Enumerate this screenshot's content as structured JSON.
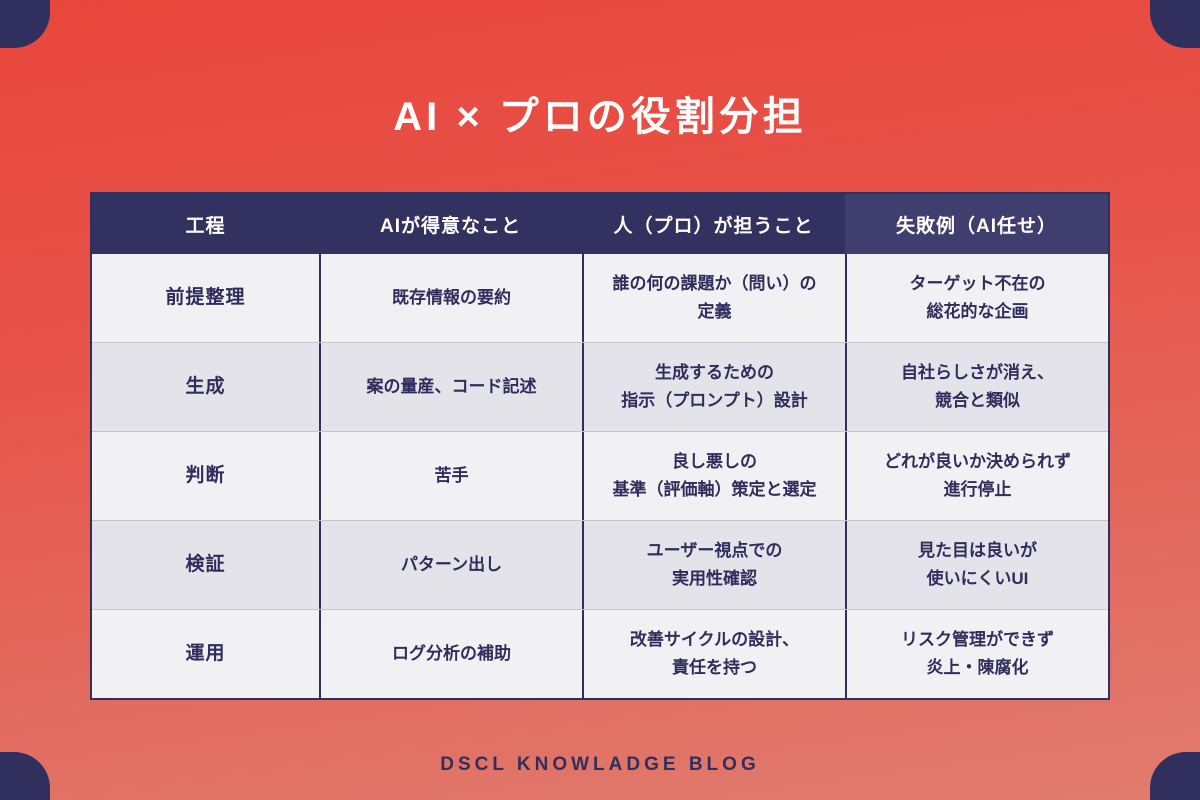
{
  "title": "AI × プロの役割分担",
  "footer": "DSCL KNOWLADGE BLOG",
  "colors": {
    "background_top": "#e8463b",
    "background_bottom": "#e07c6f",
    "navy": "#312f5e",
    "header_bg": "#333160",
    "header_highlight_bg": "#403e6f",
    "row_light": "#f1f0f3",
    "row_dark": "#e4e3e9",
    "cell_text": "#2f2d5c",
    "title_text": "#ffffff"
  },
  "table": {
    "header": [
      "工程",
      "AIが得意なこと",
      "人（プロ）が担うこと",
      "失敗例（AI任せ）"
    ],
    "rows": [
      {
        "cells": [
          "前提整理",
          "既存情報の要約",
          "誰の何の課題か（問い）の\n定義",
          "ターゲット不在の\n総花的な企画"
        ]
      },
      {
        "cells": [
          "生成",
          "案の量産、コード記述",
          "生成するための\n指示（プロンプト）設計",
          "自社らしさが消え、\n競合と類似"
        ]
      },
      {
        "cells": [
          "判断",
          "苦手",
          "良し悪しの\n基準（評価軸）策定と選定",
          "どれが良いか決められず\n進行停止"
        ]
      },
      {
        "cells": [
          "検証",
          "パターン出し",
          "ユーザー視点での\n実用性確認",
          "見た目は良いが\n使いにくいUI"
        ]
      },
      {
        "cells": [
          "運用",
          "ログ分析の補助",
          "改善サイクルの設計、\n責任を持つ",
          "リスク管理ができず\n炎上・陳腐化"
        ]
      }
    ]
  },
  "chart_data": {
    "type": "table",
    "title": "AI × プロの役割分担",
    "columns": [
      "工程",
      "AIが得意なこと",
      "人（プロ）が担うこと",
      "失敗例（AI任せ）"
    ],
    "rows": [
      [
        "前提整理",
        "既存情報の要約",
        "誰の何の課題か（問い）の定義",
        "ターゲット不在の総花的な企画"
      ],
      [
        "生成",
        "案の量産、コード記述",
        "生成するための指示（プロンプト）設計",
        "自社らしさが消え、競合と類似"
      ],
      [
        "判断",
        "苦手",
        "良し悪しの基準（評価軸）策定と選定",
        "どれが良いか決められず進行停止"
      ],
      [
        "検証",
        "パターン出し",
        "ユーザー視点での実用性確認",
        "見た目は良いが使いにくいUI"
      ],
      [
        "運用",
        "ログ分析の補助",
        "改善サイクルの設計、責任を持つ",
        "リスク管理ができず炎上・陳腐化"
      ]
    ],
    "layout": {
      "header_style": "dark-navy band, last column highlighted lighter navy",
      "body_style": "alternating light/dark gray rows, navy vertical dividers",
      "footer_credit": "DSCL KNOWLADGE BLOG"
    }
  }
}
